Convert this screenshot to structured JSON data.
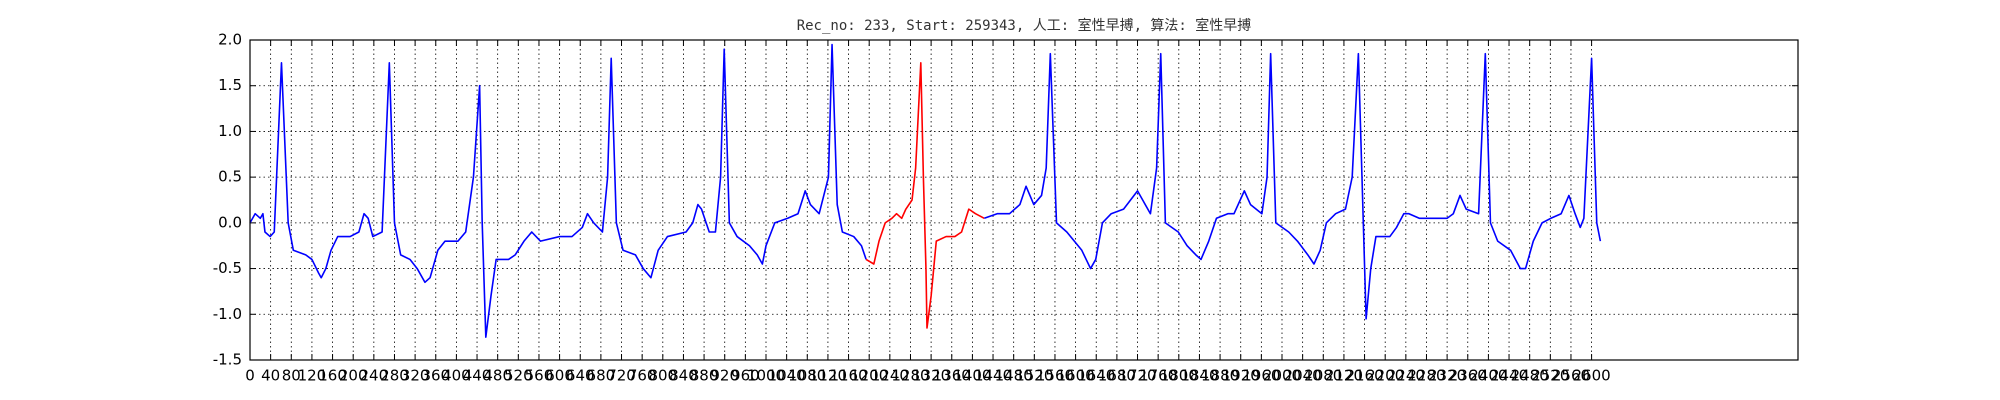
{
  "chart_data": {
    "type": "line",
    "title": "Rec_no: 233, Start: 259343, 人工: 室性早搏, 算法: 室性早搏",
    "xlim": [
      0,
      3000
    ],
    "ylim": [
      -1.5,
      2.0
    ],
    "xticks": [
      0,
      40,
      80,
      120,
      160,
      200,
      240,
      280,
      320,
      360,
      400,
      440,
      480,
      520,
      560,
      600,
      640,
      680,
      720,
      760,
      800,
      840,
      880,
      920,
      960,
      1000,
      1040,
      1080,
      1120,
      1160,
      1200,
      1240,
      1280,
      1320,
      1360,
      1400,
      1440,
      1480,
      1520,
      1560,
      1600,
      1640,
      1680,
      1720,
      1760,
      1800,
      1840,
      1880,
      1920,
      1960,
      2000,
      2040,
      2080,
      2120,
      2160,
      2200,
      2240,
      2280,
      2320,
      2360,
      2400,
      2440,
      2480,
      2520,
      2560,
      2600
    ],
    "yticks": [
      -1.5,
      {
        "value": -1,
        "label": "-1.0"
      },
      -0.5,
      {
        "value": 0,
        "label": "0.0"
      },
      0.5,
      {
        "value": 1,
        "label": "1.0"
      },
      1.5,
      {
        "value": 2,
        "label": "2.0"
      }
    ],
    "grid": true,
    "series": [
      {
        "color": "#0000ff",
        "x": [
          0,
          10,
          20,
          25,
          29,
          39,
          47,
          61,
          74,
          84,
          108,
          120,
          133,
          138,
          147,
          157,
          170,
          194,
          211,
          221,
          229,
          238,
          256,
          270,
          280,
          292,
          310,
          324,
          339,
          349,
          364,
          378,
          403,
          418,
          433,
          445,
          450,
          457,
          467,
          477,
          501,
          514,
          531,
          546,
          563,
          600,
          624,
          644,
          654,
          666,
          683,
          693,
          700,
          710,
          723,
          747,
          762,
          777,
          791,
          809,
          845,
          858,
          868,
          875,
          890,
          902,
          912,
          919,
          929,
          944,
          968,
          983,
          993,
          1000,
          1017,
          1042,
          1062,
          1076,
          1086,
          1103,
          1121,
          1128,
          1138,
          1148,
          1170,
          1185,
          1194
        ],
        "values": [
          0.0,
          0.1,
          0.05,
          0.1,
          -0.1,
          -0.15,
          -0.1,
          1.75,
          0.0,
          -0.3,
          -0.35,
          -0.4,
          -0.55,
          -0.6,
          -0.5,
          -0.3,
          -0.15,
          -0.15,
          -0.1,
          0.1,
          0.05,
          -0.15,
          -0.1,
          1.75,
          0.0,
          -0.35,
          -0.4,
          -0.5,
          -0.65,
          -0.6,
          -0.3,
          -0.2,
          -0.2,
          -0.1,
          0.5,
          1.5,
          0.0,
          -1.25,
          -0.8,
          -0.4,
          -0.4,
          -0.35,
          -0.2,
          -0.1,
          -0.2,
          -0.15,
          -0.15,
          -0.05,
          0.1,
          0.0,
          -0.1,
          0.5,
          1.8,
          0.0,
          -0.3,
          -0.35,
          -0.5,
          -0.6,
          -0.3,
          -0.15,
          -0.1,
          0.0,
          0.2,
          0.15,
          -0.1,
          -0.1,
          0.5,
          1.9,
          0.0,
          -0.15,
          -0.25,
          -0.35,
          -0.45,
          -0.25,
          0.0,
          0.05,
          0.1,
          0.35,
          0.2,
          0.1,
          0.5,
          1.95,
          0.2,
          -0.1,
          -0.15,
          -0.25,
          -0.4
        ]
      },
      {
        "color": "#ff0000",
        "x": [
          1194,
          1209,
          1219,
          1231,
          1244,
          1253,
          1263,
          1271,
          1283,
          1290,
          1300,
          1305,
          1310,
          1312,
          1320,
          1330,
          1349,
          1366,
          1379,
          1393,
          1406,
          1423
        ],
        "values": [
          -0.4,
          -0.45,
          -0.2,
          0.0,
          0.05,
          0.1,
          0.05,
          0.15,
          0.25,
          0.6,
          1.75,
          0.5,
          -0.5,
          -1.15,
          -0.8,
          -0.2,
          -0.15,
          -0.15,
          -0.1,
          0.15,
          0.1,
          0.05
        ]
      },
      {
        "color": "#0000ff",
        "x": [
          1423,
          1448,
          1472,
          1492,
          1504,
          1519,
          1534,
          1543,
          1551,
          1563,
          1583,
          1612,
          1629,
          1639,
          1652,
          1669,
          1693,
          1720,
          1730,
          1745,
          1757,
          1765,
          1774,
          1799,
          1816,
          1833,
          1843,
          1858,
          1873,
          1895,
          1907,
          1927,
          1939,
          1961,
          1971,
          1978,
          1988,
          2013,
          2030,
          2050,
          2062,
          2074,
          2086,
          2104,
          2123,
          2136,
          2148,
          2155,
          2163,
          2172,
          2182,
          2209,
          2222,
          2236,
          2246,
          2266,
          2320,
          2332,
          2345,
          2357,
          2381,
          2394,
          2404,
          2418,
          2443,
          2462,
          2472,
          2487,
          2504,
          2521,
          2541,
          2556,
          2568,
          2578,
          2585,
          2600,
          2610,
          2617
        ],
        "values": [
          0.05,
          0.1,
          0.1,
          0.2,
          0.4,
          0.2,
          0.3,
          0.6,
          1.85,
          0.0,
          -0.1,
          -0.3,
          -0.5,
          -0.4,
          0.0,
          0.1,
          0.15,
          0.35,
          0.25,
          0.1,
          0.6,
          1.85,
          0.0,
          -0.1,
          -0.25,
          -0.35,
          -0.4,
          -0.2,
          0.05,
          0.1,
          0.1,
          0.35,
          0.2,
          0.1,
          0.5,
          1.85,
          0.0,
          -0.1,
          -0.2,
          -0.35,
          -0.45,
          -0.3,
          0.0,
          0.1,
          0.15,
          0.5,
          1.85,
          0.5,
          -1.05,
          -0.5,
          -0.15,
          -0.15,
          -0.05,
          0.1,
          0.1,
          0.05,
          0.05,
          0.1,
          0.3,
          0.15,
          0.1,
          1.85,
          0.0,
          -0.2,
          -0.3,
          -0.5,
          -0.5,
          -0.2,
          0.0,
          0.05,
          0.1,
          0.3,
          0.1,
          -0.05,
          0.05,
          1.8,
          0.0,
          -0.2
        ]
      }
    ]
  }
}
